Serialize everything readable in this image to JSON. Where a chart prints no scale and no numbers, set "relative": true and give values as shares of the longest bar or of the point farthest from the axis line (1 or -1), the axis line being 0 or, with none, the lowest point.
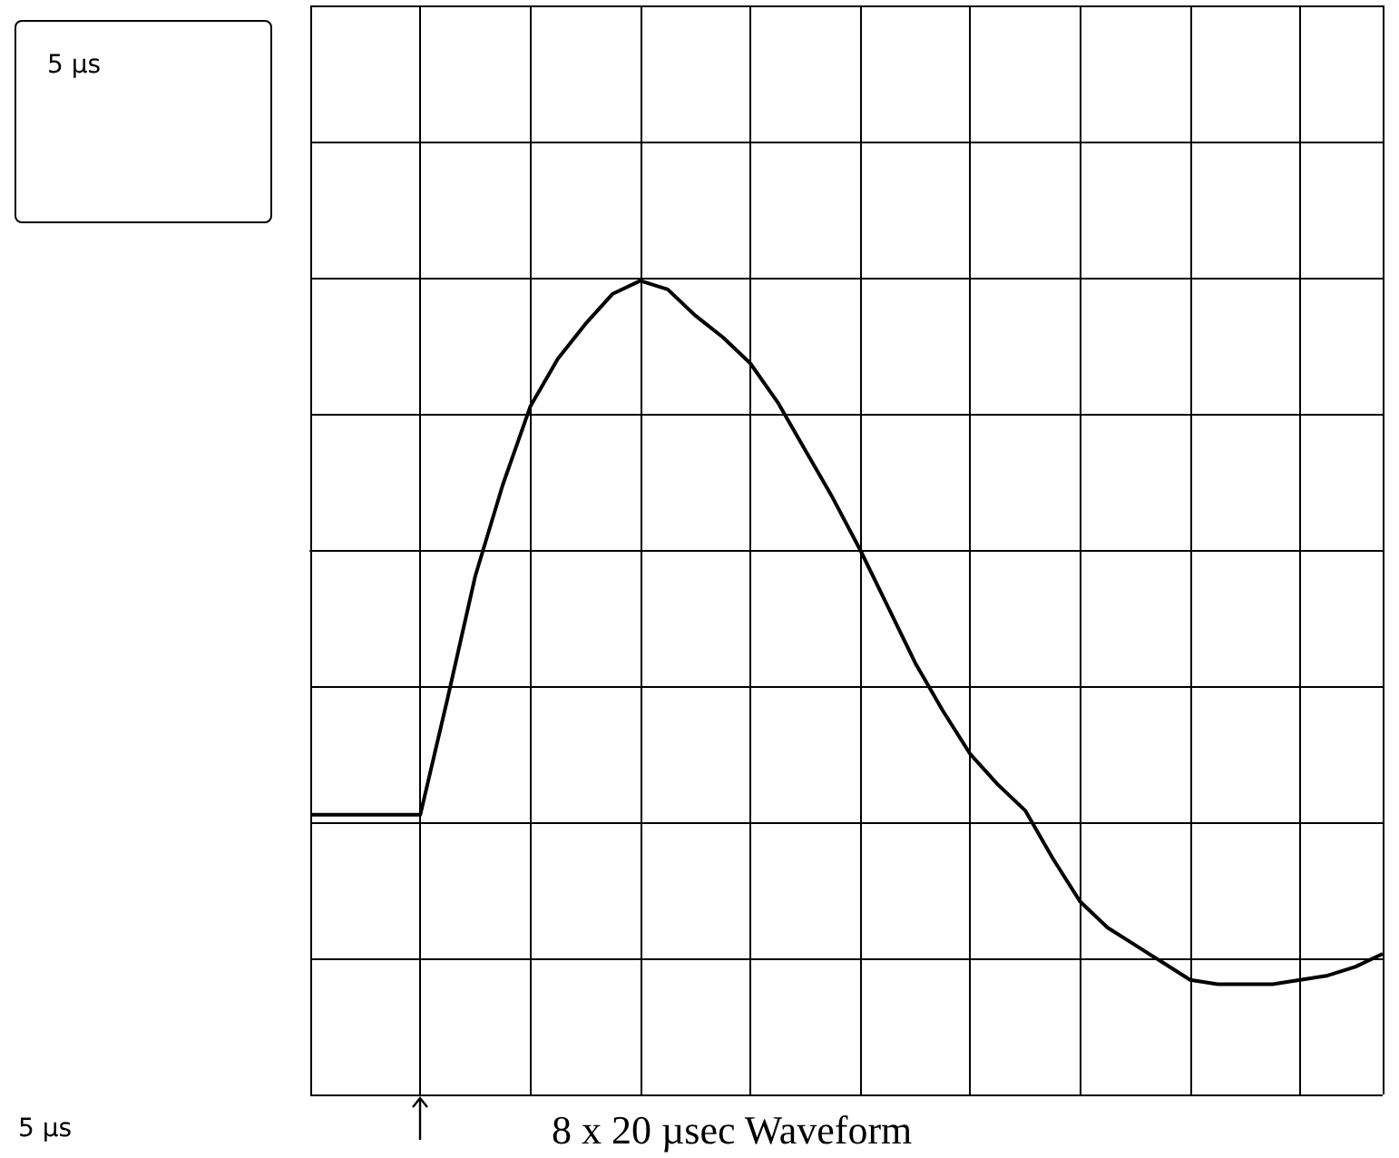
{
  "chart_data": {
    "type": "line",
    "title": "8 x 20  µsec Waveform",
    "annotations": [
      "5 µs",
      "5 µs"
    ],
    "relative": true,
    "grid": true,
    "categories": [
      null,
      null,
      null,
      null,
      null,
      null,
      null,
      null,
      null,
      null,
      null,
      null,
      null,
      null,
      null,
      null,
      null,
      null,
      null,
      null,
      null,
      null,
      null,
      null,
      null,
      null,
      null,
      null,
      null,
      null,
      null,
      null,
      null,
      null,
      null,
      null,
      null,
      null,
      null,
      null
    ],
    "series": [
      {
        "color": "#000000",
        "values": [
          -0.61,
          -0.61,
          -0.61,
          -0.61,
          -0.61,
          -0.34,
          -0.06,
          0.15,
          0.33,
          0.44,
          0.52,
          0.59,
          0.62,
          0.6,
          0.54,
          0.49,
          0.43,
          0.34,
          0.23,
          0.12,
          0,
          -0.13,
          -0.26,
          -0.37,
          -0.47,
          -0.54,
          -0.6,
          -0.71,
          -0.81,
          -0.87,
          -0.91,
          -0.95,
          -0.99,
          -1,
          -1,
          -1,
          -0.99,
          -0.98,
          -0.96,
          -0.93
        ]
      }
    ]
  }
}
